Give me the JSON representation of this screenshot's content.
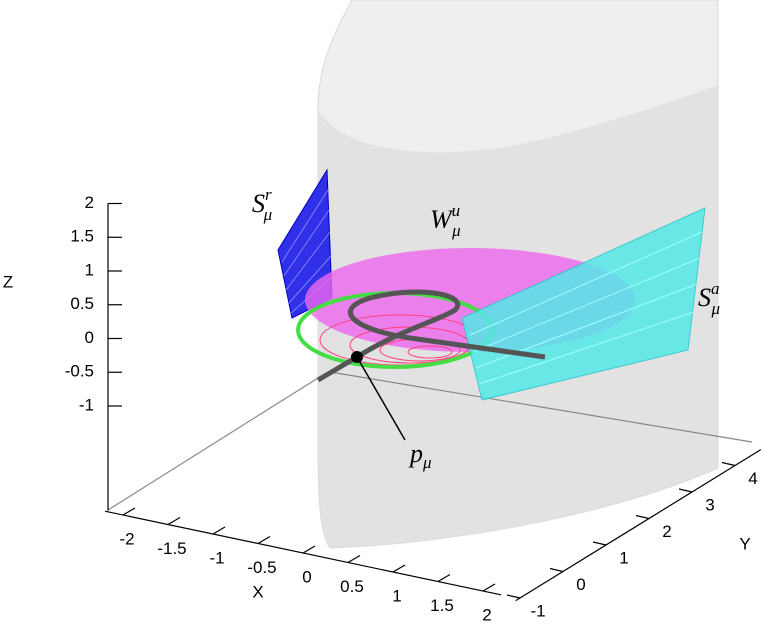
{
  "chart_data": {
    "type": "surface3d",
    "xlabel": "X",
    "ylabel": "Y",
    "zlabel": "Z",
    "xlim": [
      -2.2,
      2.2
    ],
    "ylim": [
      -1.1,
      4.6
    ],
    "zlim": [
      -2.55,
      2
    ],
    "xticks": [
      -2,
      -1.5,
      -1,
      -0.5,
      0,
      0.5,
      1,
      1.5,
      2
    ],
    "yticks": [
      -1,
      0,
      1,
      2,
      3,
      4
    ],
    "zticks": [
      2,
      1.5,
      1,
      0.5,
      0,
      -0.5,
      -1
    ],
    "annotations": [
      {
        "base": "S",
        "sub": "μ",
        "sup": "r"
      },
      {
        "base": "W",
        "sub": "μ",
        "sup": "u"
      },
      {
        "base": "S",
        "sub": "μ",
        "sup": "a"
      },
      {
        "base": "p",
        "sub": "μ"
      }
    ]
  }
}
